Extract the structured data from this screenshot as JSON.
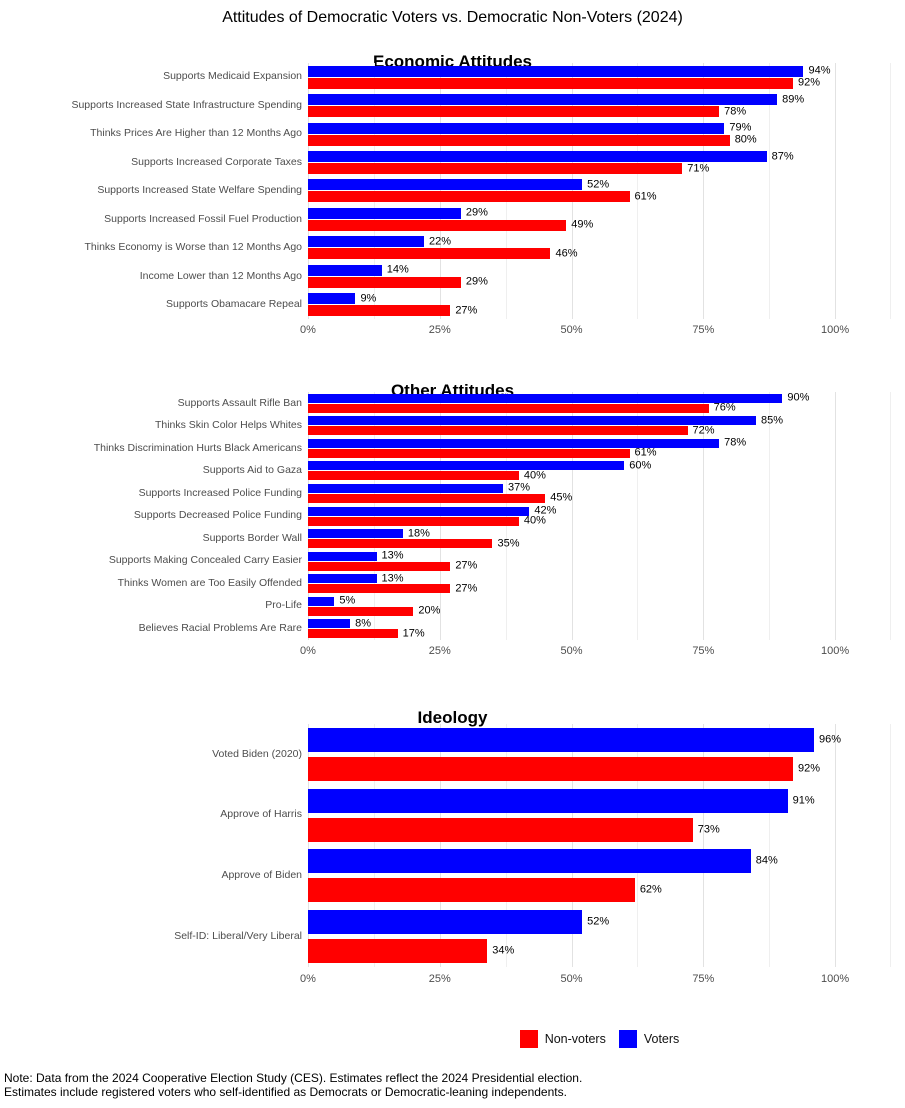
{
  "title": "Attitudes of Democratic Voters vs. Democratic Non-Voters (2024)",
  "colors": {
    "voters": "#0000ff",
    "non_voters": "#ff0000",
    "grid_major": "#e2e2e2",
    "grid_minor": "#efefef",
    "axis_text": "#4d4d4d"
  },
  "legend": {
    "position": "bottom",
    "items": [
      {
        "label": "Non-voters",
        "color": "#ff0000"
      },
      {
        "label": "Voters",
        "color": "#0000ff"
      }
    ]
  },
  "note": {
    "line1": "Note: Data from the 2024 Cooperative Election Study (CES). Estimates reflect the 2024 Presidential election.",
    "line2": "Estimates include registered voters who self-identified as Democrats or Democratic-leaning independents."
  },
  "chart_data": [
    {
      "type": "bar",
      "orientation": "horizontal",
      "title": "Economic Attitudes",
      "xlabel": "",
      "ylabel": "",
      "xlim": [
        0,
        110
      ],
      "grid": true,
      "tick_values": [
        0,
        25,
        50,
        75,
        100
      ],
      "tick_labels": [
        "0%",
        "25%",
        "50%",
        "75%",
        "100%"
      ],
      "categories": [
        "Supports Medicaid Expansion",
        "Supports Increased State Infrastructure Spending",
        "Thinks Prices Are Higher than 12 Months Ago",
        "Supports Increased Corporate Taxes",
        "Supports Increased State Welfare Spending",
        "Supports Increased Fossil Fuel Production",
        "Thinks Economy is Worse than 12 Months Ago",
        "Income Lower than 12 Months Ago",
        "Supports Obamacare Repeal"
      ],
      "series": [
        {
          "name": "Voters",
          "color": "#0000ff",
          "values": [
            94,
            89,
            79,
            87,
            52,
            29,
            22,
            14,
            9
          ]
        },
        {
          "name": "Non-voters",
          "color": "#ff0000",
          "values": [
            92,
            78,
            80,
            71,
            61,
            49,
            46,
            29,
            27
          ]
        }
      ]
    },
    {
      "type": "bar",
      "orientation": "horizontal",
      "title": "Other Attitudes",
      "xlabel": "",
      "ylabel": "",
      "xlim": [
        0,
        110
      ],
      "grid": true,
      "tick_values": [
        0,
        25,
        50,
        75,
        100
      ],
      "tick_labels": [
        "0%",
        "25%",
        "50%",
        "75%",
        "100%"
      ],
      "categories": [
        "Supports Assault Rifle Ban",
        "Thinks Skin Color Helps Whites",
        "Thinks Discrimination Hurts Black Americans",
        "Supports Aid to Gaza",
        "Supports Increased Police Funding",
        "Supports Decreased Police Funding",
        "Supports Border Wall",
        "Supports Making Concealed Carry Easier",
        "Thinks Women are Too Easily Offended",
        "Pro-Life",
        "Believes Racial Problems Are Rare"
      ],
      "series": [
        {
          "name": "Voters",
          "color": "#0000ff",
          "values": [
            90,
            85,
            78,
            60,
            37,
            42,
            18,
            13,
            13,
            5,
            8
          ]
        },
        {
          "name": "Non-voters",
          "color": "#ff0000",
          "values": [
            76,
            72,
            61,
            40,
            45,
            40,
            35,
            27,
            27,
            20,
            17
          ]
        }
      ]
    },
    {
      "type": "bar",
      "orientation": "horizontal",
      "title": "Ideology",
      "xlabel": "",
      "ylabel": "",
      "xlim": [
        0,
        110
      ],
      "grid": true,
      "tick_values": [
        0,
        25,
        50,
        75,
        100
      ],
      "tick_labels": [
        "0%",
        "25%",
        "50%",
        "75%",
        "100%"
      ],
      "categories": [
        "Voted Biden (2020)",
        "Approve of Harris",
        "Approve of Biden",
        "Self-ID: Liberal/Very Liberal"
      ],
      "series": [
        {
          "name": "Voters",
          "color": "#0000ff",
          "values": [
            96,
            91,
            84,
            52
          ]
        },
        {
          "name": "Non-voters",
          "color": "#ff0000",
          "values": [
            92,
            73,
            62,
            34
          ]
        }
      ]
    }
  ]
}
